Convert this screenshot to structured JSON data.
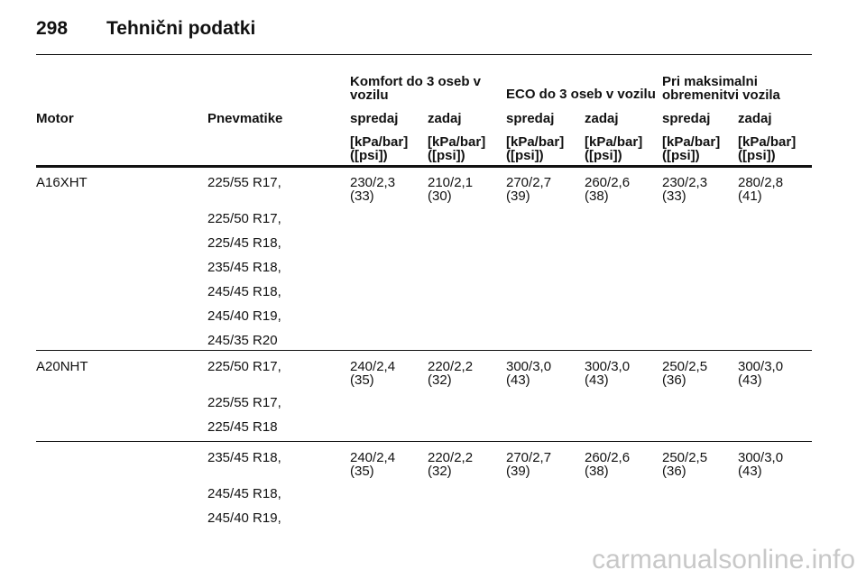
{
  "header": {
    "page": "298",
    "title": "Tehnični podatki"
  },
  "table": {
    "group_headers": [
      "Komfort do 3 oseb v vozilu",
      "ECO do 3 oseb v vozilu",
      "Pri maksimalni obremenitvi vozila"
    ],
    "columns": [
      "Motor",
      "Pnevmatike",
      "spredaj",
      "zadaj",
      "spredaj",
      "zadaj",
      "spredaj",
      "zadaj"
    ],
    "units": [
      [
        "[kPa/bar]",
        "([psi])"
      ],
      [
        "[kPa/bar]",
        "([psi])"
      ],
      [
        "[kPa/bar]",
        "([psi])"
      ],
      [
        "[kPa/bar]",
        "([psi])"
      ],
      [
        "[kPa/bar]",
        "([psi])"
      ],
      [
        "[kPa/bar]",
        "([psi])"
      ]
    ],
    "rows": [
      {
        "motor": "A16XHT",
        "tires": [
          "225/55 R17,",
          "225/50 R17,",
          "225/45 R18,",
          "235/45 R18,",
          "245/45 R18,",
          "245/40 R19,",
          "245/35 R20"
        ],
        "values": [
          [
            "230/2,3",
            "(33)"
          ],
          [
            "210/2,1",
            "(30)"
          ],
          [
            "270/2,7",
            "(39)"
          ],
          [
            "260/2,6",
            "(38)"
          ],
          [
            "230/2,3",
            "(33)"
          ],
          [
            "280/2,8",
            "(41)"
          ]
        ]
      },
      {
        "motor": "A20NHT",
        "tires": [
          "225/50 R17,",
          "225/55 R17,",
          "225/45 R18"
        ],
        "values": [
          [
            "240/2,4",
            "(35)"
          ],
          [
            "220/2,2",
            "(32)"
          ],
          [
            "300/3,0",
            "(43)"
          ],
          [
            "300/3,0",
            "(43)"
          ],
          [
            "250/2,5",
            "(36)"
          ],
          [
            "300/3,0",
            "(43)"
          ]
        ]
      },
      {
        "tires": [
          "235/45 R18,",
          "245/45 R18,",
          "245/40 R19,"
        ],
        "values": [
          [
            "240/2,4",
            "(35)"
          ],
          [
            "220/2,2",
            "(32)"
          ],
          [
            "270/2,7",
            "(39)"
          ],
          [
            "260/2,6",
            "(38)"
          ],
          [
            "250/2,5",
            "(36)"
          ],
          [
            "300/3,0",
            "(43)"
          ]
        ]
      }
    ]
  },
  "footer": {
    "watermark": "carmanualsonline.info"
  }
}
